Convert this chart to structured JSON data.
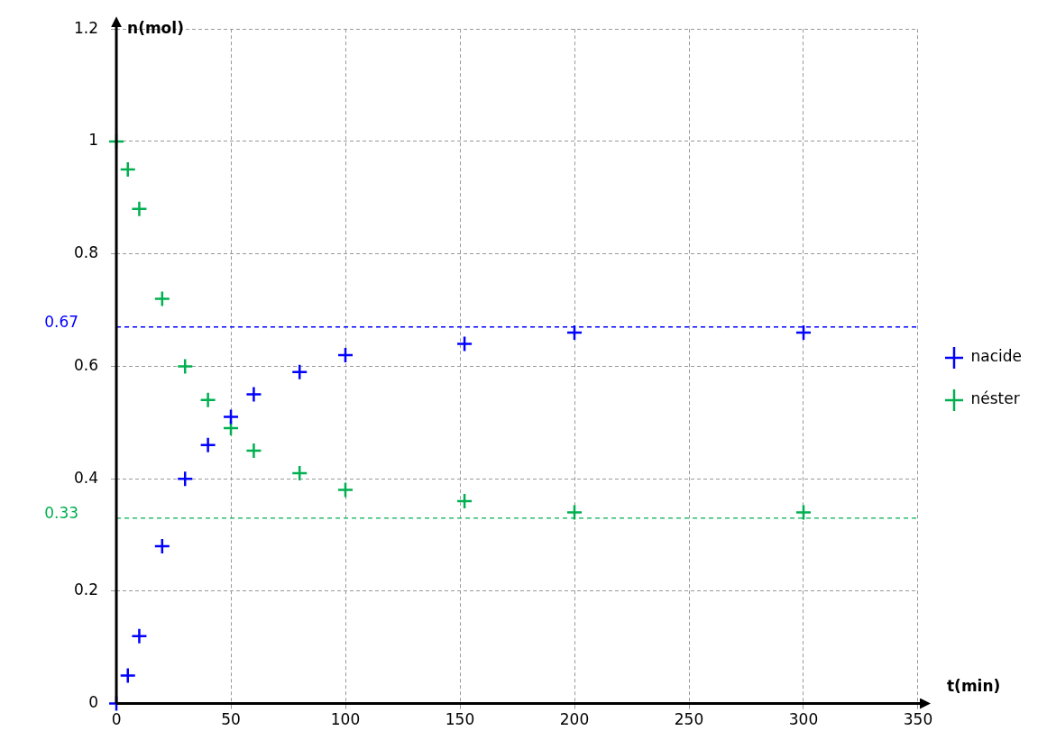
{
  "chart_data": {
    "type": "scatter",
    "xlabel": "t(min)",
    "ylabel": "n(mol)",
    "series": [
      {
        "name": "nacide",
        "color": "#0000ff",
        "x": [
          0,
          5,
          10,
          20,
          30,
          40,
          50,
          60,
          80,
          100,
          152,
          200,
          300
        ],
        "values": [
          0,
          0.05,
          0.12,
          0.28,
          0.4,
          0.46,
          0.51,
          0.55,
          0.59,
          0.62,
          0.64,
          0.66,
          0.66
        ]
      },
      {
        "name": "néster",
        "color": "#00b050",
        "x": [
          0,
          5,
          10,
          20,
          30,
          40,
          50,
          60,
          80,
          100,
          152,
          200,
          300
        ],
        "values": [
          1,
          0.95,
          0.88,
          0.72,
          0.6,
          0.54,
          0.49,
          0.45,
          0.41,
          0.38,
          0.36,
          0.34,
          0.34
        ]
      }
    ],
    "xlim": [
      0,
      350
    ],
    "xticks": [
      0,
      50,
      100,
      150,
      200,
      250,
      300,
      350
    ],
    "ylim": [
      0,
      1.2
    ],
    "yticks": [
      0,
      0.2,
      0.4,
      0.6,
      0.8,
      1,
      1.2
    ],
    "ref_lines": [
      {
        "axis": "y",
        "value": 0.67,
        "label": "0.67",
        "color": "#0000ff",
        "line_style": "dashed"
      },
      {
        "axis": "y",
        "value": 0.33,
        "label": "0.33",
        "color": "#00b050",
        "line_style": "dashed"
      }
    ],
    "grid": true,
    "legend": "right",
    "marker": "cross"
  }
}
